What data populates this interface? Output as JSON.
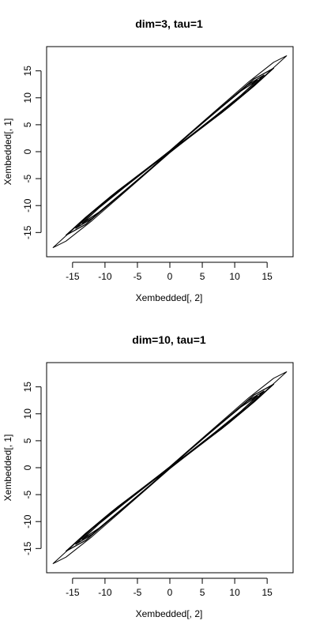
{
  "chart_data": [
    {
      "type": "line",
      "title": "dim=3, tau=1",
      "xlabel": "Xembedded[, 2]",
      "ylabel": "Xembedded[, 1]",
      "xlim": [
        -19,
        19
      ],
      "ylim": [
        -19.5,
        19.5
      ],
      "xticks": [
        -15,
        -10,
        -5,
        0,
        5,
        10,
        15
      ],
      "yticks": [
        -15,
        -10,
        -5,
        0,
        5,
        10,
        15
      ],
      "grid": false,
      "series": [
        {
          "points": [
            [
              -18,
              -17.8
            ],
            [
              -16,
              -15.6
            ],
            [
              -12,
              -11.2
            ],
            [
              -8,
              -7.2
            ],
            [
              -4,
              -3.6
            ],
            [
              0,
              0.2
            ],
            [
              4,
              4.4
            ],
            [
              8,
              8.6
            ],
            [
              12,
              12.8
            ],
            [
              16,
              16.6
            ],
            [
              18,
              17.8
            ],
            [
              16,
              15.6
            ],
            [
              12,
              11.2
            ],
            [
              8,
              7.2
            ],
            [
              4,
              3.6
            ],
            [
              0,
              -0.2
            ],
            [
              -4,
              -4.4
            ],
            [
              -8,
              -8.6
            ],
            [
              -12,
              -12.8
            ],
            [
              -16,
              -16.6
            ],
            [
              -18,
              -17.8
            ]
          ]
        },
        {
          "points": [
            [
              -16,
              -15.5
            ],
            [
              -13,
              -12.2
            ],
            [
              -9,
              -8.2
            ],
            [
              -5,
              -4.5
            ],
            [
              0,
              0.1
            ],
            [
              5,
              5.3
            ],
            [
              9,
              9.4
            ],
            [
              13,
              13.5
            ],
            [
              16,
              15.5
            ],
            [
              13,
              12.2
            ],
            [
              9,
              8.2
            ],
            [
              5,
              4.5
            ],
            [
              0,
              -0.1
            ],
            [
              -5,
              -5.3
            ],
            [
              -9,
              -9.4
            ],
            [
              -13,
              -13.5
            ],
            [
              -16,
              -15.5
            ]
          ]
        },
        {
          "points": [
            [
              -14.5,
              -14.2
            ],
            [
              -12,
              -11.3
            ],
            [
              -8,
              -7.4
            ],
            [
              -4,
              -3.7
            ],
            [
              0,
              0.1
            ],
            [
              4,
              4.3
            ],
            [
              8,
              8.4
            ],
            [
              12,
              12.4
            ],
            [
              14.5,
              14.2
            ],
            [
              12,
              11.3
            ],
            [
              8,
              7.4
            ],
            [
              4,
              3.7
            ],
            [
              0,
              -0.1
            ],
            [
              -4,
              -4.3
            ],
            [
              -8,
              -8.4
            ],
            [
              -12,
              -12.4
            ],
            [
              -14.5,
              -14.2
            ]
          ]
        },
        {
          "points": [
            [
              -13.5,
              -13.3
            ],
            [
              -11,
              -10.5
            ],
            [
              -7,
              -6.6
            ],
            [
              -3,
              -2.8
            ],
            [
              0,
              0
            ],
            [
              3,
              3.2
            ],
            [
              7,
              7.3
            ],
            [
              11,
              11.3
            ],
            [
              13.5,
              13.3
            ],
            [
              11,
              10.5
            ],
            [
              7,
              6.6
            ],
            [
              3,
              2.8
            ],
            [
              0,
              0
            ],
            [
              -3,
              -3.2
            ],
            [
              -7,
              -7.3
            ],
            [
              -11,
              -11.3
            ],
            [
              -13.5,
              -13.3
            ]
          ]
        }
      ]
    },
    {
      "type": "line",
      "title": "dim=10, tau=1",
      "xlabel": "Xembedded[, 2]",
      "ylabel": "Xembedded[, 1]",
      "xlim": [
        -19,
        19
      ],
      "ylim": [
        -19.5,
        19.5
      ],
      "xticks": [
        -15,
        -10,
        -5,
        0,
        5,
        10,
        15
      ],
      "yticks": [
        -15,
        -10,
        -5,
        0,
        5,
        10,
        15
      ],
      "grid": false,
      "series": [
        {
          "points": [
            [
              -18,
              -17.8
            ],
            [
              -16,
              -15.6
            ],
            [
              -12,
              -11.2
            ],
            [
              -8,
              -7.2
            ],
            [
              -4,
              -3.6
            ],
            [
              0,
              0.2
            ],
            [
              4,
              4.4
            ],
            [
              8,
              8.6
            ],
            [
              12,
              12.8
            ],
            [
              16,
              16.6
            ],
            [
              18,
              17.8
            ],
            [
              16,
              15.6
            ],
            [
              12,
              11.2
            ],
            [
              8,
              7.2
            ],
            [
              4,
              3.6
            ],
            [
              0,
              -0.2
            ],
            [
              -4,
              -4.4
            ],
            [
              -8,
              -8.6
            ],
            [
              -12,
              -12.8
            ],
            [
              -16,
              -16.6
            ],
            [
              -18,
              -17.8
            ]
          ]
        },
        {
          "points": [
            [
              -16,
              -15.5
            ],
            [
              -13,
              -12.2
            ],
            [
              -9,
              -8.2
            ],
            [
              -5,
              -4.5
            ],
            [
              0,
              0.1
            ],
            [
              5,
              5.3
            ],
            [
              9,
              9.4
            ],
            [
              13,
              13.5
            ],
            [
              16,
              15.5
            ],
            [
              13,
              12.2
            ],
            [
              9,
              8.2
            ],
            [
              5,
              4.5
            ],
            [
              0,
              -0.1
            ],
            [
              -5,
              -5.3
            ],
            [
              -9,
              -9.4
            ],
            [
              -13,
              -13.5
            ],
            [
              -16,
              -15.5
            ]
          ]
        },
        {
          "points": [
            [
              -14.5,
              -14.2
            ],
            [
              -12,
              -11.3
            ],
            [
              -8,
              -7.4
            ],
            [
              -4,
              -3.7
            ],
            [
              0,
              0.1
            ],
            [
              4,
              4.3
            ],
            [
              8,
              8.4
            ],
            [
              12,
              12.4
            ],
            [
              14.5,
              14.2
            ],
            [
              12,
              11.3
            ],
            [
              8,
              7.4
            ],
            [
              4,
              3.7
            ],
            [
              0,
              -0.1
            ],
            [
              -4,
              -4.3
            ],
            [
              -8,
              -8.4
            ],
            [
              -12,
              -12.4
            ],
            [
              -14.5,
              -14.2
            ]
          ]
        },
        {
          "points": [
            [
              -13.5,
              -13.3
            ],
            [
              -11,
              -10.5
            ],
            [
              -7,
              -6.6
            ],
            [
              -3,
              -2.8
            ],
            [
              0,
              0
            ],
            [
              3,
              3.2
            ],
            [
              7,
              7.3
            ],
            [
              11,
              11.3
            ],
            [
              13.5,
              13.3
            ],
            [
              11,
              10.5
            ],
            [
              7,
              6.6
            ],
            [
              3,
              2.8
            ],
            [
              0,
              0
            ],
            [
              -3,
              -3.2
            ],
            [
              -7,
              -7.3
            ],
            [
              -11,
              -11.3
            ],
            [
              -13.5,
              -13.3
            ]
          ]
        }
      ]
    }
  ]
}
